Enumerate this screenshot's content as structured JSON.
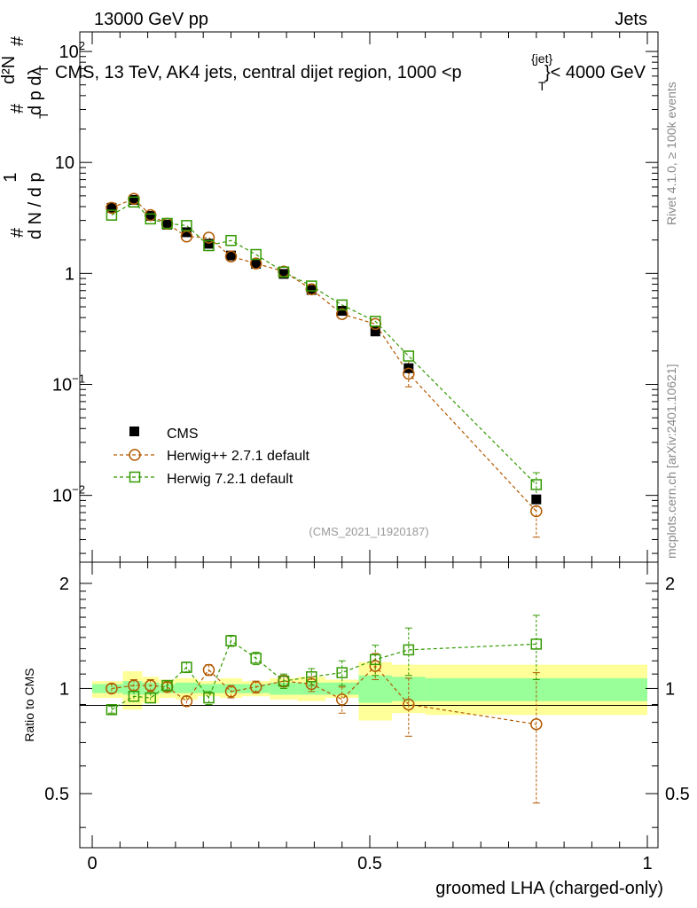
{
  "header": {
    "left": "13000 GeV pp",
    "right": "Jets",
    "title": "CMS, 13 TeV, AK4 jets, central dijet region, 1000 <p",
    "title_sup": "{jet}",
    "title_sub": "T",
    "title_end": "}< 4000 GeV"
  },
  "ylabel_main": {
    "hash1": "#",
    "one": "1",
    "dN_dpT": "d N / d p",
    "T": "T",
    "hash2": "#",
    "d2N": "d²N",
    "dpT_dl": "d p  dλ",
    "T2": "T",
    "hash3": "#"
  },
  "side": {
    "rivet": "Rivet 4.1.0, ≥ 100k events",
    "mcplots": "mcplots.cern.ch [arXiv:2401.10621]"
  },
  "analysis_id": "(CMS_2021_I1920187)",
  "ratio_ylabel": "Ratio to CMS",
  "xlabel": "groomed LHA (charged-only)",
  "colors": {
    "data": "#000000",
    "herwigpp": "#b35900",
    "herwig7": "#339900",
    "band_inner": "#99ff99",
    "band_outer": "#ffff99"
  },
  "chart_data": [
    {
      "type": "scatter",
      "panel": "main",
      "yscale": "log",
      "xlim": [
        0,
        1
      ],
      "ylim": [
        0.0025,
        150
      ],
      "y_ticks": [
        {
          "base": "10",
          "exp": "−2",
          "value": 0.01
        },
        {
          "base": "10",
          "exp": "−1",
          "value": 0.1
        },
        {
          "base": "1",
          "exp": "",
          "value": 1
        },
        {
          "base": "10",
          "exp": "",
          "value": 10
        },
        {
          "base": "10",
          "exp": "2",
          "value": 100
        }
      ],
      "x": [
        0.035,
        0.075,
        0.105,
        0.135,
        0.17,
        0.21,
        0.25,
        0.295,
        0.345,
        0.395,
        0.45,
        0.51,
        0.57,
        0.8
      ],
      "series": [
        {
          "name": "CMS",
          "values": [
            3.9,
            4.6,
            3.3,
            2.75,
            2.35,
            1.85,
            1.45,
            1.22,
            0.99,
            0.71,
            0.46,
            0.3,
            0.14,
            0.0092
          ]
        },
        {
          "name": "Herwig++ 2.7.1 default",
          "values": [
            3.9,
            4.7,
            3.35,
            2.8,
            2.15,
            2.1,
            1.42,
            1.23,
            1.04,
            0.72,
            0.43,
            0.35,
            0.125,
            0.0072
          ]
        },
        {
          "name": "Herwig 7.2.1 default",
          "values": [
            3.35,
            4.4,
            3.1,
            2.82,
            2.7,
            1.78,
            1.98,
            1.48,
            1.03,
            0.77,
            0.52,
            0.37,
            0.18,
            0.0125
          ]
        }
      ],
      "legend": [
        "CMS",
        "Herwig++ 2.7.1 default",
        "Herwig 7.2.1 default"
      ]
    },
    {
      "type": "scatter",
      "panel": "ratio",
      "ylabel": "Ratio to CMS",
      "xlim": [
        0,
        1
      ],
      "ylim": [
        0.35,
        2.3
      ],
      "y_ticks": [
        "0.5",
        "1",
        "2"
      ],
      "x_ticks": [
        "0",
        "0.5",
        "1"
      ],
      "xlabel": "groomed LHA (charged-only)",
      "x": [
        0.035,
        0.075,
        0.105,
        0.135,
        0.17,
        0.21,
        0.25,
        0.295,
        0.345,
        0.395,
        0.45,
        0.51,
        0.57,
        0.8
      ],
      "series": [
        {
          "name": "Herwig++ 2.7.1 default",
          "values": [
            1.0,
            1.02,
            1.02,
            1.01,
            0.92,
            1.13,
            0.98,
            1.01,
            1.05,
            1.03,
            0.93,
            1.16,
            0.9,
            0.79
          ],
          "errors": [
            0.03,
            0.04,
            0.04,
            0.03,
            0.03,
            0.04,
            0.04,
            0.04,
            0.04,
            0.05,
            0.08,
            0.1,
            0.17,
            0.32
          ]
        },
        {
          "name": "Herwig 7.2.1 default",
          "values": [
            0.87,
            0.95,
            0.94,
            1.02,
            1.15,
            0.94,
            1.37,
            1.22,
            1.05,
            1.08,
            1.11,
            1.21,
            1.29,
            1.34
          ],
          "errors": [
            0.02,
            0.03,
            0.03,
            0.03,
            0.04,
            0.04,
            0.05,
            0.05,
            0.05,
            0.06,
            0.09,
            0.12,
            0.2,
            0.28
          ]
        }
      ],
      "uncertainty_band_inner": [
        {
          "x0": 0.0,
          "x1": 0.055,
          "lo": 0.97,
          "hi": 1.03
        },
        {
          "x0": 0.055,
          "x1": 0.09,
          "lo": 0.96,
          "hi": 1.05
        },
        {
          "x0": 0.09,
          "x1": 0.12,
          "lo": 0.96,
          "hi": 1.04
        },
        {
          "x0": 0.12,
          "x1": 0.15,
          "lo": 0.97,
          "hi": 1.03
        },
        {
          "x0": 0.15,
          "x1": 0.19,
          "lo": 0.97,
          "hi": 1.04
        },
        {
          "x0": 0.19,
          "x1": 0.23,
          "lo": 0.97,
          "hi": 1.03
        },
        {
          "x0": 0.23,
          "x1": 0.27,
          "lo": 0.97,
          "hi": 1.03
        },
        {
          "x0": 0.27,
          "x1": 0.32,
          "lo": 0.97,
          "hi": 1.03
        },
        {
          "x0": 0.32,
          "x1": 0.37,
          "lo": 0.96,
          "hi": 1.04
        },
        {
          "x0": 0.37,
          "x1": 0.42,
          "lo": 0.96,
          "hi": 1.04
        },
        {
          "x0": 0.42,
          "x1": 0.48,
          "lo": 0.96,
          "hi": 1.04
        },
        {
          "x0": 0.48,
          "x1": 0.54,
          "lo": 0.91,
          "hi": 1.09
        },
        {
          "x0": 0.54,
          "x1": 0.6,
          "lo": 0.92,
          "hi": 1.08
        },
        {
          "x0": 0.6,
          "x1": 1.0,
          "lo": 0.92,
          "hi": 1.07
        }
      ],
      "uncertainty_band_outer": [
        {
          "x0": 0.0,
          "x1": 0.055,
          "lo": 0.94,
          "hi": 1.05
        },
        {
          "x0": 0.055,
          "x1": 0.09,
          "lo": 0.87,
          "hi": 1.12
        },
        {
          "x0": 0.09,
          "x1": 0.12,
          "lo": 0.91,
          "hi": 1.08
        },
        {
          "x0": 0.12,
          "x1": 0.15,
          "lo": 0.94,
          "hi": 1.06
        },
        {
          "x0": 0.15,
          "x1": 0.19,
          "lo": 0.93,
          "hi": 1.07
        },
        {
          "x0": 0.19,
          "x1": 0.23,
          "lo": 0.95,
          "hi": 1.05
        },
        {
          "x0": 0.23,
          "x1": 0.27,
          "lo": 0.94,
          "hi": 1.07
        },
        {
          "x0": 0.27,
          "x1": 0.32,
          "lo": 0.95,
          "hi": 1.05
        },
        {
          "x0": 0.32,
          "x1": 0.37,
          "lo": 0.93,
          "hi": 1.07
        },
        {
          "x0": 0.37,
          "x1": 0.42,
          "lo": 0.92,
          "hi": 1.08
        },
        {
          "x0": 0.42,
          "x1": 0.48,
          "lo": 0.94,
          "hi": 1.06
        },
        {
          "x0": 0.48,
          "x1": 0.54,
          "lo": 0.81,
          "hi": 1.19
        },
        {
          "x0": 0.54,
          "x1": 0.6,
          "lo": 0.85,
          "hi": 1.17
        },
        {
          "x0": 0.6,
          "x1": 1.0,
          "lo": 0.84,
          "hi": 1.17
        }
      ]
    }
  ]
}
